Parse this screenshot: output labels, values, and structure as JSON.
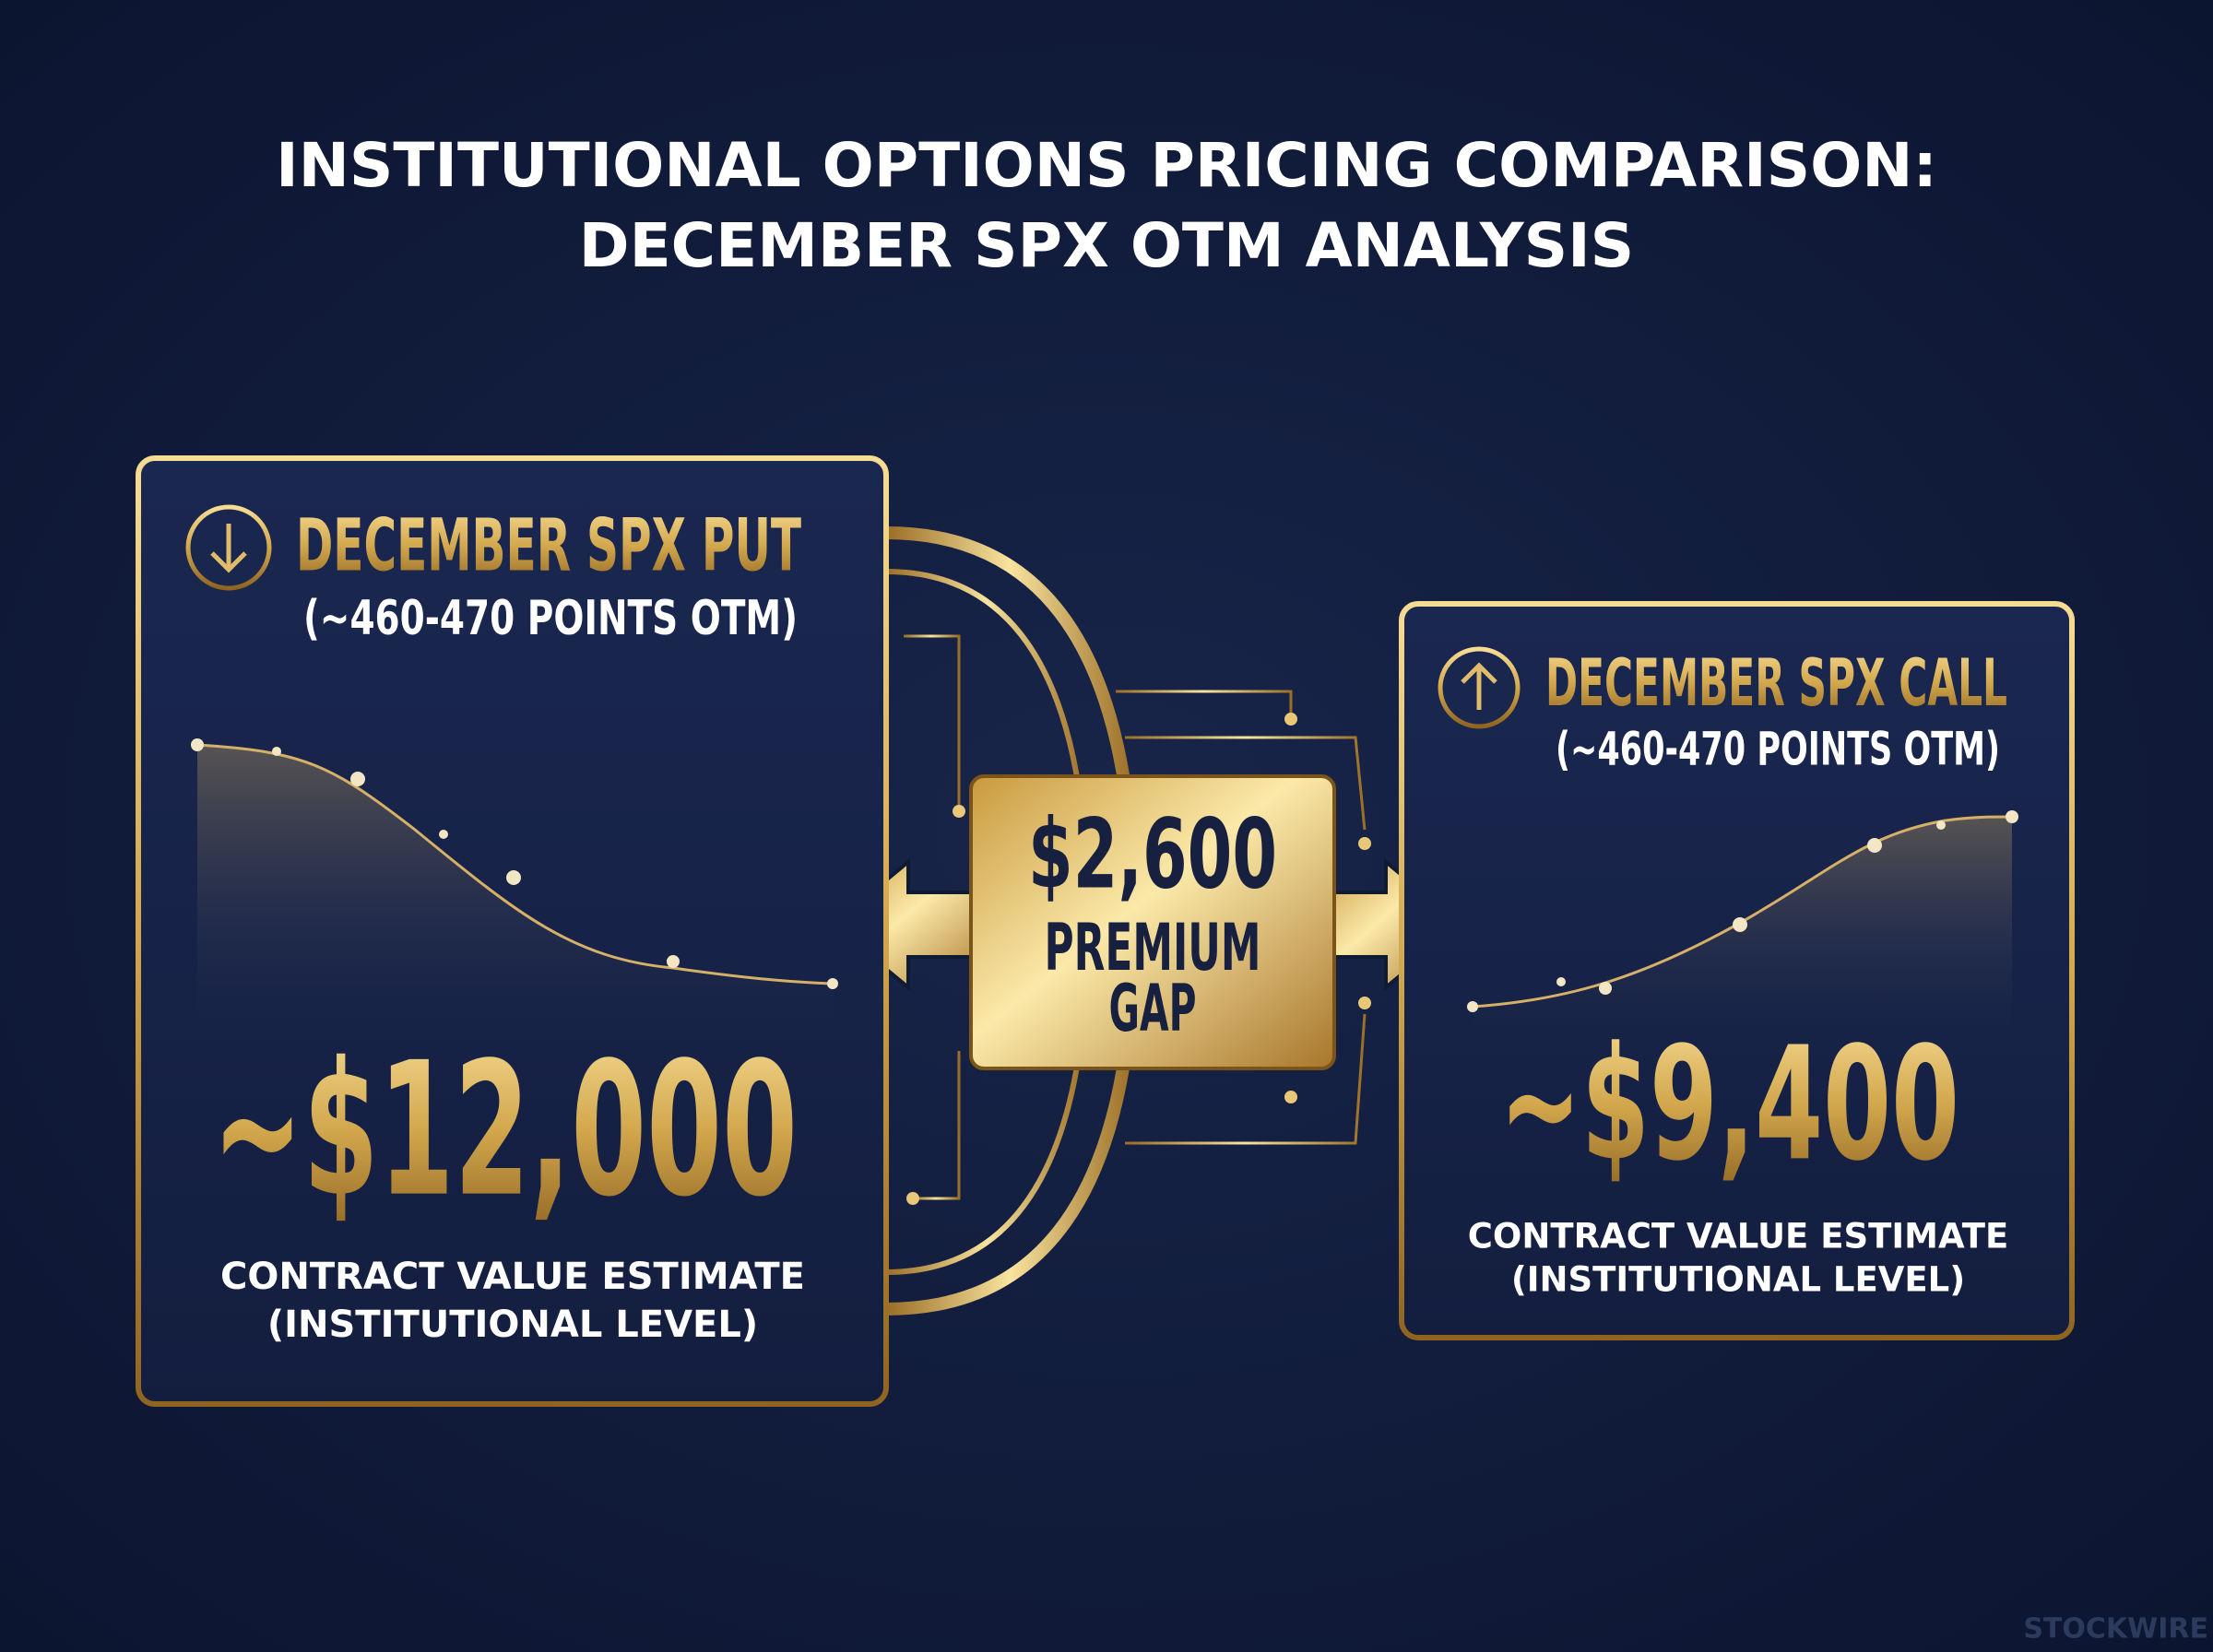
{
  "title": {
    "line1": "INSTITUTIONAL OPTIONS PRICING COMPARISON:",
    "line2": "DECEMBER SPX OTM ANALYSIS"
  },
  "put_card": {
    "title": "DECEMBER SPX PUT",
    "subtitle": "(~460-470 POINTS OTM)",
    "value": "~$12,000",
    "caption_line1": "CONTRACT VALUE ESTIMATE",
    "caption_line2": "(INSTITUTIONAL LEVEL)"
  },
  "call_card": {
    "title": "DECEMBER SPX CALL",
    "subtitle": "(~460-470 POINTS OTM)",
    "value": "~$9,400",
    "caption_line1": "CONTRACT VALUE ESTIMATE",
    "caption_line2": "(INSTITUTIONAL LEVEL)"
  },
  "gap": {
    "value": "$2,600",
    "label_line1": "PREMIUM",
    "label_line2": "GAP"
  },
  "watermark": "STOCKWIRE"
}
